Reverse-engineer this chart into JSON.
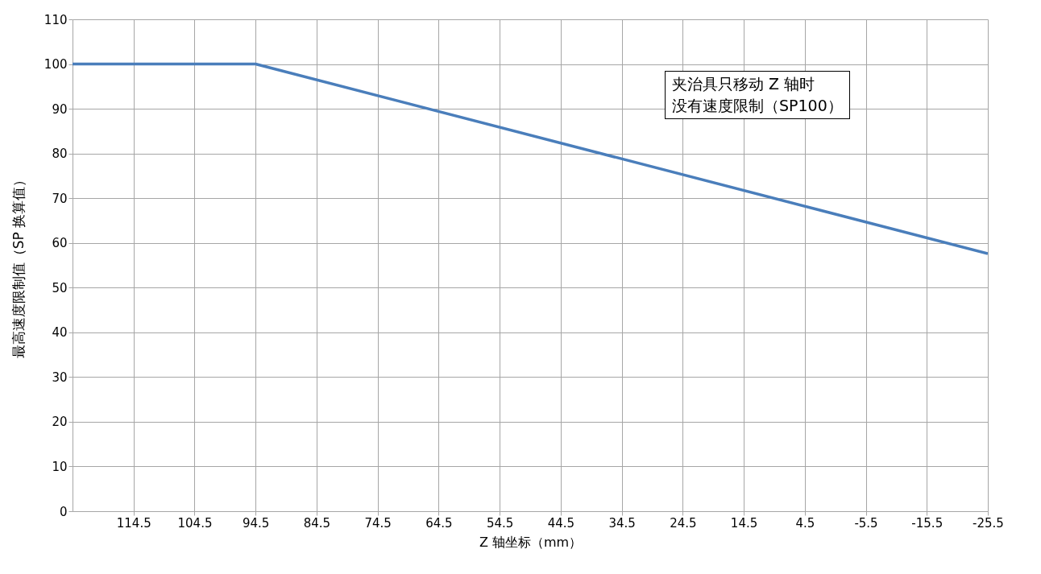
{
  "chart_data": {
    "type": "line",
    "xlabel": "Z 轴坐标（mm）",
    "ylabel": "最高速度限制值（SP 换算值）",
    "x": [
      124.5,
      94.5,
      -25.5
    ],
    "series": [
      {
        "color": "#4a7ebb",
        "values": [
          100,
          100,
          57.6
        ]
      }
    ],
    "xlim": [
      124.5,
      -25.5
    ],
    "xticks": [
      114.5,
      104.5,
      94.5,
      84.5,
      74.5,
      64.5,
      54.5,
      44.5,
      34.5,
      24.5,
      14.5,
      4.5,
      -5.5,
      -15.5,
      -25.5
    ],
    "ylim": [
      0,
      110
    ],
    "yticks": [
      0,
      10,
      20,
      30,
      40,
      50,
      60,
      70,
      80,
      90,
      100,
      110
    ],
    "grid": true,
    "marker": "none",
    "line_style": "solid",
    "annotations": [
      "夹治具只移动 Z 轴时",
      "没有速度限制（SP100）"
    ]
  }
}
